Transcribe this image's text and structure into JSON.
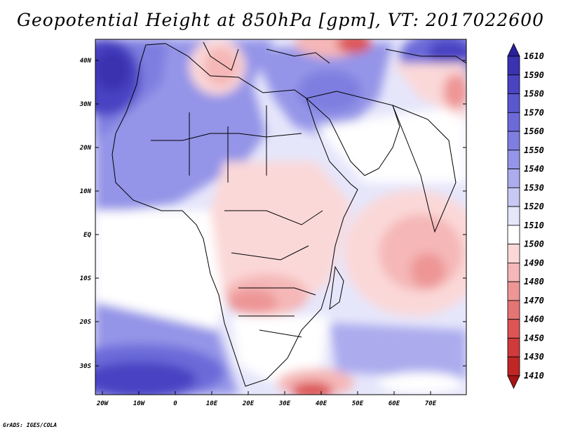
{
  "title": "Geopotential Height at 850hPa [gpm], VT: 2017022600",
  "lat_labels": [
    "40N",
    "30N",
    "20N",
    "10N",
    "EQ",
    "10S",
    "20S",
    "30S"
  ],
  "lon_labels": [
    "20W",
    "10W",
    "0",
    "10E",
    "20E",
    "30E",
    "40E",
    "50E",
    "60E",
    "70E"
  ],
  "colorbar": {
    "labels": [
      "1610",
      "1590",
      "1580",
      "1570",
      "1560",
      "1550",
      "1540",
      "1530",
      "1520",
      "1510",
      "1500",
      "1490",
      "1480",
      "1470",
      "1460",
      "1450",
      "1430",
      "1410"
    ],
    "colors": [
      "#2a1f9c",
      "#3a32b0",
      "#4a43c2",
      "#5a58cf",
      "#6c6ad9",
      "#7e7ee0",
      "#9494e8",
      "#ababee",
      "#c8c8f5",
      "#e6e6fb",
      "#ffffff",
      "#fbd8d8",
      "#f5b7b7",
      "#ee9696",
      "#e57474",
      "#dc5454",
      "#cf3a3a",
      "#c02626",
      "#a81414"
    ]
  },
  "footer": "GrADS: IGES/COLA"
}
